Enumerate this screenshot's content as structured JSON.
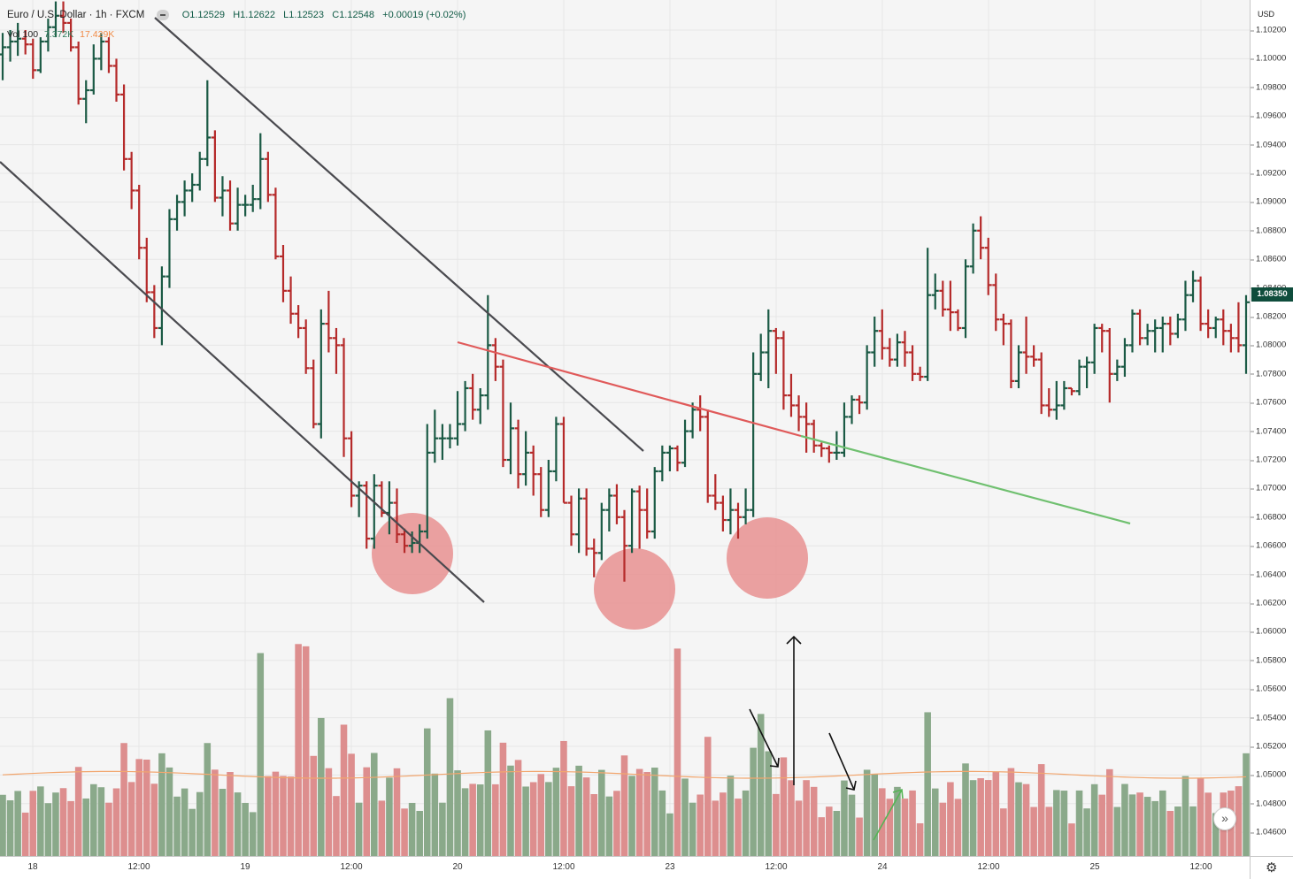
{
  "legend": {
    "symbol": "Euro / U.S. Dollar · 1h · FXCM",
    "open": "O1.12529",
    "high": "H1.12622",
    "low": "L1.12523",
    "close": "C1.12548",
    "change": "+0.00019 (+0.02%)"
  },
  "volume_legend": {
    "label": "Vol 100",
    "value1": "7.372K",
    "value2": "17.429K"
  },
  "price_scale": {
    "currency": "USD",
    "last_price": "1.08350",
    "ticks": [
      "1.10200",
      "1.10000",
      "1.09800",
      "1.09600",
      "1.09400",
      "1.09200",
      "1.09000",
      "1.08800",
      "1.08600",
      "1.08400",
      "1.08200",
      "1.08000",
      "1.07800",
      "1.07600",
      "1.07400",
      "1.07200",
      "1.07000",
      "1.06800",
      "1.06600",
      "1.06400",
      "1.06200",
      "1.06000",
      "1.05800",
      "1.05600",
      "1.05400",
      "1.05200",
      "1.05000",
      "1.04800",
      "1.04600"
    ]
  },
  "time_scale": {
    "ticks": [
      "18",
      "12:00",
      "19",
      "12:00",
      "20",
      "12:00",
      "23",
      "12:00",
      "24",
      "12:00",
      "25",
      "12:00"
    ]
  },
  "colors": {
    "up": "#1b5a45",
    "down": "#b52a2a",
    "volume_up": "#8aa98a",
    "volume_down": "#dd8e8e",
    "volume_ma": "#f2a66e",
    "channel": "#4a4a4f",
    "neckline_red": "#e05a5a",
    "neckline_green": "#70c070",
    "circle": "#e89090"
  },
  "chart_data": {
    "type": "ohlc",
    "candles": [
      {
        "o": 1.1003,
        "h": 1.1018,
        "l": 1.0985,
        "c": 1.1008
      },
      {
        "o": 1.1008,
        "h": 1.102,
        "l": 1.0998,
        "c": 1.1012
      },
      {
        "o": 1.1012,
        "h": 1.1025,
        "l": 1.1002,
        "c": 1.1014
      },
      {
        "o": 1.1014,
        "h": 1.102,
        "l": 1.1003,
        "c": 1.101
      },
      {
        "o": 1.101,
        "h": 1.1014,
        "l": 1.0986,
        "c": 1.0992
      },
      {
        "o": 1.0992,
        "h": 1.1015,
        "l": 1.099,
        "c": 1.1012
      },
      {
        "o": 1.1012,
        "h": 1.1028,
        "l": 1.1005,
        "c": 1.1022
      },
      {
        "o": 1.1022,
        "h": 1.104,
        "l": 1.1015,
        "c": 1.103
      },
      {
        "o": 1.103,
        "h": 1.104,
        "l": 1.1018,
        "c": 1.1025
      },
      {
        "o": 1.1025,
        "h": 1.1028,
        "l": 1.1005,
        "c": 1.1008
      },
      {
        "o": 1.1008,
        "h": 1.1012,
        "l": 1.0968,
        "c": 1.0972
      },
      {
        "o": 1.0972,
        "h": 1.0985,
        "l": 1.0955,
        "c": 1.0978
      },
      {
        "o": 1.0978,
        "h": 1.101,
        "l": 1.0975,
        "c": 1.1
      },
      {
        "o": 1.1,
        "h": 1.1018,
        "l": 1.0992,
        "c": 1.1012
      },
      {
        "o": 1.1012,
        "h": 1.1015,
        "l": 1.099,
        "c": 1.0995
      },
      {
        "o": 1.0995,
        "h": 1.1,
        "l": 1.097,
        "c": 1.0975
      },
      {
        "o": 1.0975,
        "h": 1.0982,
        "l": 1.0922,
        "c": 1.093
      },
      {
        "o": 1.093,
        "h": 1.0935,
        "l": 1.0895,
        "c": 1.0908
      },
      {
        "o": 1.0908,
        "h": 1.0912,
        "l": 1.086,
        "c": 1.0868
      },
      {
        "o": 1.0868,
        "h": 1.0875,
        "l": 1.083,
        "c": 1.0837
      },
      {
        "o": 1.0837,
        "h": 1.0842,
        "l": 1.0805,
        "c": 1.0812
      },
      {
        "o": 1.0812,
        "h": 1.0855,
        "l": 1.08,
        "c": 1.0848
      },
      {
        "o": 1.0848,
        "h": 1.0895,
        "l": 1.084,
        "c": 1.0888
      },
      {
        "o": 1.0888,
        "h": 1.0905,
        "l": 1.088,
        "c": 1.09
      },
      {
        "o": 1.09,
        "h": 1.0915,
        "l": 1.089,
        "c": 1.0908
      },
      {
        "o": 1.0908,
        "h": 1.092,
        "l": 1.09,
        "c": 1.0912
      },
      {
        "o": 1.0912,
        "h": 1.0935,
        "l": 1.0908,
        "c": 1.093
      },
      {
        "o": 1.093,
        "h": 1.0985,
        "l": 1.0925,
        "c": 1.0945
      },
      {
        "o": 1.0945,
        "h": 1.095,
        "l": 1.09,
        "c": 1.0903
      },
      {
        "o": 1.0903,
        "h": 1.0918,
        "l": 1.089,
        "c": 1.0908
      },
      {
        "o": 1.0908,
        "h": 1.0915,
        "l": 1.088,
        "c": 1.0885
      },
      {
        "o": 1.0885,
        "h": 1.091,
        "l": 1.088,
        "c": 1.0898
      },
      {
        "o": 1.0898,
        "h": 1.0905,
        "l": 1.089,
        "c": 1.0898
      },
      {
        "o": 1.0898,
        "h": 1.0912,
        "l": 1.0893,
        "c": 1.0902
      },
      {
        "o": 1.0902,
        "h": 1.0948,
        "l": 1.0895,
        "c": 1.093
      },
      {
        "o": 1.093,
        "h": 1.0935,
        "l": 1.09,
        "c": 1.0905
      },
      {
        "o": 1.0905,
        "h": 1.091,
        "l": 1.086,
        "c": 1.0862
      },
      {
        "o": 1.0862,
        "h": 1.087,
        "l": 1.083,
        "c": 1.0838
      },
      {
        "o": 1.0838,
        "h": 1.0848,
        "l": 1.0815,
        "c": 1.0822
      },
      {
        "o": 1.0822,
        "h": 1.0828,
        "l": 1.0805,
        "c": 1.0812
      },
      {
        "o": 1.0812,
        "h": 1.0818,
        "l": 1.078,
        "c": 1.0784
      },
      {
        "o": 1.0784,
        "h": 1.079,
        "l": 1.0742,
        "c": 1.0745
      },
      {
        "o": 1.0745,
        "h": 1.0825,
        "l": 1.0735,
        "c": 1.0815
      },
      {
        "o": 1.0815,
        "h": 1.0838,
        "l": 1.0795,
        "c": 1.0805
      },
      {
        "o": 1.0805,
        "h": 1.0812,
        "l": 1.078,
        "c": 1.08
      },
      {
        "o": 1.08,
        "h": 1.0805,
        "l": 1.0722,
        "c": 1.0735
      },
      {
        "o": 1.0735,
        "h": 1.074,
        "l": 1.0687,
        "c": 1.0695
      },
      {
        "o": 1.0695,
        "h": 1.0705,
        "l": 1.068,
        "c": 1.0702
      },
      {
        "o": 1.0702,
        "h": 1.0705,
        "l": 1.0658,
        "c": 1.0665
      },
      {
        "o": 1.0665,
        "h": 1.071,
        "l": 1.0658,
        "c": 1.0702
      },
      {
        "o": 1.0702,
        "h": 1.0705,
        "l": 1.068,
        "c": 1.0683
      },
      {
        "o": 1.0683,
        "h": 1.0705,
        "l": 1.0668,
        "c": 1.069
      },
      {
        "o": 1.069,
        "h": 1.07,
        "l": 1.0662,
        "c": 1.0668
      },
      {
        "o": 1.0668,
        "h": 1.0672,
        "l": 1.0655,
        "c": 1.066
      },
      {
        "o": 1.066,
        "h": 1.067,
        "l": 1.0655,
        "c": 1.0662
      },
      {
        "o": 1.0662,
        "h": 1.0675,
        "l": 1.0655,
        "c": 1.067
      },
      {
        "o": 1.067,
        "h": 1.0745,
        "l": 1.0665,
        "c": 1.0725
      },
      {
        "o": 1.0725,
        "h": 1.0755,
        "l": 1.0718,
        "c": 1.0735
      },
      {
        "o": 1.0735,
        "h": 1.0745,
        "l": 1.072,
        "c": 1.0735
      },
      {
        "o": 1.0735,
        "h": 1.0745,
        "l": 1.0728,
        "c": 1.0735
      },
      {
        "o": 1.0735,
        "h": 1.0768,
        "l": 1.073,
        "c": 1.0745
      },
      {
        "o": 1.0745,
        "h": 1.0775,
        "l": 1.074,
        "c": 1.077
      },
      {
        "o": 1.077,
        "h": 1.078,
        "l": 1.0748,
        "c": 1.0755
      },
      {
        "o": 1.0755,
        "h": 1.077,
        "l": 1.0745,
        "c": 1.0765
      },
      {
        "o": 1.0765,
        "h": 1.0835,
        "l": 1.0755,
        "c": 1.08
      },
      {
        "o": 1.08,
        "h": 1.0805,
        "l": 1.0775,
        "c": 1.0785
      },
      {
        "o": 1.0785,
        "h": 1.079,
        "l": 1.0715,
        "c": 1.072
      },
      {
        "o": 1.072,
        "h": 1.076,
        "l": 1.071,
        "c": 1.0742
      },
      {
        "o": 1.0742,
        "h": 1.0748,
        "l": 1.07,
        "c": 1.071
      },
      {
        "o": 1.071,
        "h": 1.074,
        "l": 1.0702,
        "c": 1.0725
      },
      {
        "o": 1.0725,
        "h": 1.073,
        "l": 1.0695,
        "c": 1.071
      },
      {
        "o": 1.071,
        "h": 1.0715,
        "l": 1.068,
        "c": 1.0685
      },
      {
        "o": 1.0685,
        "h": 1.072,
        "l": 1.068,
        "c": 1.0712
      },
      {
        "o": 1.0712,
        "h": 1.075,
        "l": 1.0705,
        "c": 1.0745
      },
      {
        "o": 1.0745,
        "h": 1.075,
        "l": 1.069,
        "c": 1.069
      },
      {
        "o": 1.069,
        "h": 1.0695,
        "l": 1.066,
        "c": 1.0668
      },
      {
        "o": 1.0668,
        "h": 1.07,
        "l": 1.0655,
        "c": 1.0693
      },
      {
        "o": 1.0693,
        "h": 1.07,
        "l": 1.0653,
        "c": 1.0658
      },
      {
        "o": 1.0658,
        "h": 1.0665,
        "l": 1.0638,
        "c": 1.0655
      },
      {
        "o": 1.0655,
        "h": 1.069,
        "l": 1.065,
        "c": 1.0685
      },
      {
        "o": 1.0685,
        "h": 1.07,
        "l": 1.067,
        "c": 1.0695
      },
      {
        "o": 1.0695,
        "h": 1.0703,
        "l": 1.0675,
        "c": 1.068
      },
      {
        "o": 1.068,
        "h": 1.0685,
        "l": 1.0635,
        "c": 1.066
      },
      {
        "o": 1.066,
        "h": 1.07,
        "l": 1.0655,
        "c": 1.0698
      },
      {
        "o": 1.0698,
        "h": 1.0702,
        "l": 1.0658,
        "c": 1.0685
      },
      {
        "o": 1.0685,
        "h": 1.07,
        "l": 1.0665,
        "c": 1.067
      },
      {
        "o": 1.067,
        "h": 1.0715,
        "l": 1.0665,
        "c": 1.0712
      },
      {
        "o": 1.0712,
        "h": 1.073,
        "l": 1.0705,
        "c": 1.0725
      },
      {
        "o": 1.0725,
        "h": 1.073,
        "l": 1.0712,
        "c": 1.0728
      },
      {
        "o": 1.0728,
        "h": 1.073,
        "l": 1.0712,
        "c": 1.0718
      },
      {
        "o": 1.0718,
        "h": 1.0748,
        "l": 1.0715,
        "c": 1.074
      },
      {
        "o": 1.074,
        "h": 1.076,
        "l": 1.0735,
        "c": 1.0755
      },
      {
        "o": 1.0755,
        "h": 1.0765,
        "l": 1.074,
        "c": 1.075
      },
      {
        "o": 1.075,
        "h": 1.0755,
        "l": 1.069,
        "c": 1.0695
      },
      {
        "o": 1.0695,
        "h": 1.071,
        "l": 1.0685,
        "c": 1.069
      },
      {
        "o": 1.069,
        "h": 1.0695,
        "l": 1.067,
        "c": 1.0678
      },
      {
        "o": 1.0678,
        "h": 1.07,
        "l": 1.0668,
        "c": 1.0685
      },
      {
        "o": 1.0685,
        "h": 1.069,
        "l": 1.0665,
        "c": 1.068
      },
      {
        "o": 1.068,
        "h": 1.07,
        "l": 1.0675,
        "c": 1.0685
      },
      {
        "o": 1.0685,
        "h": 1.0795,
        "l": 1.068,
        "c": 1.078
      },
      {
        "o": 1.078,
        "h": 1.0808,
        "l": 1.0775,
        "c": 1.0795
      },
      {
        "o": 1.0795,
        "h": 1.0825,
        "l": 1.077,
        "c": 1.081
      },
      {
        "o": 1.081,
        "h": 1.0812,
        "l": 1.078,
        "c": 1.0805
      },
      {
        "o": 1.0805,
        "h": 1.081,
        "l": 1.0755,
        "c": 1.0765
      },
      {
        "o": 1.0765,
        "h": 1.078,
        "l": 1.075,
        "c": 1.0758
      },
      {
        "o": 1.0758,
        "h": 1.0765,
        "l": 1.074,
        "c": 1.075
      },
      {
        "o": 1.075,
        "h": 1.076,
        "l": 1.0725,
        "c": 1.0745
      },
      {
        "o": 1.0745,
        "h": 1.0748,
        "l": 1.0725,
        "c": 1.073
      },
      {
        "o": 1.073,
        "h": 1.0732,
        "l": 1.0722,
        "c": 1.0728
      },
      {
        "o": 1.0728,
        "h": 1.073,
        "l": 1.0718,
        "c": 1.0725
      },
      {
        "o": 1.0725,
        "h": 1.074,
        "l": 1.072,
        "c": 1.0725
      },
      {
        "o": 1.0725,
        "h": 1.076,
        "l": 1.0722,
        "c": 1.075
      },
      {
        "o": 1.075,
        "h": 1.0765,
        "l": 1.0745,
        "c": 1.0762
      },
      {
        "o": 1.0762,
        "h": 1.0765,
        "l": 1.0752,
        "c": 1.076
      },
      {
        "o": 1.076,
        "h": 1.08,
        "l": 1.0755,
        "c": 1.0795
      },
      {
        "o": 1.0795,
        "h": 1.082,
        "l": 1.0785,
        "c": 1.081
      },
      {
        "o": 1.081,
        "h": 1.0825,
        "l": 1.079,
        "c": 1.0798
      },
      {
        "o": 1.0798,
        "h": 1.0805,
        "l": 1.0785,
        "c": 1.079
      },
      {
        "o": 1.079,
        "h": 1.0808,
        "l": 1.0785,
        "c": 1.0802
      },
      {
        "o": 1.0802,
        "h": 1.081,
        "l": 1.0785,
        "c": 1.0795
      },
      {
        "o": 1.0795,
        "h": 1.08,
        "l": 1.0775,
        "c": 1.078
      },
      {
        "o": 1.078,
        "h": 1.0785,
        "l": 1.0775,
        "c": 1.0778
      },
      {
        "o": 1.0778,
        "h": 1.0868,
        "l": 1.0775,
        "c": 1.0835
      },
      {
        "o": 1.0835,
        "h": 1.085,
        "l": 1.0825,
        "c": 1.0838
      },
      {
        "o": 1.0838,
        "h": 1.0845,
        "l": 1.082,
        "c": 1.0825
      },
      {
        "o": 1.0825,
        "h": 1.0845,
        "l": 1.081,
        "c": 1.0823
      },
      {
        "o": 1.0823,
        "h": 1.0825,
        "l": 1.081,
        "c": 1.0812
      },
      {
        "o": 1.0812,
        "h": 1.086,
        "l": 1.0805,
        "c": 1.0855
      },
      {
        "o": 1.0855,
        "h": 1.0885,
        "l": 1.085,
        "c": 1.088
      },
      {
        "o": 1.088,
        "h": 1.089,
        "l": 1.086,
        "c": 1.0868
      },
      {
        "o": 1.0868,
        "h": 1.0875,
        "l": 1.0835,
        "c": 1.0842
      },
      {
        "o": 1.0842,
        "h": 1.085,
        "l": 1.081,
        "c": 1.0818
      },
      {
        "o": 1.0818,
        "h": 1.0822,
        "l": 1.08,
        "c": 1.0815
      },
      {
        "o": 1.0815,
        "h": 1.0818,
        "l": 1.077,
        "c": 1.0775
      },
      {
        "o": 1.0775,
        "h": 1.08,
        "l": 1.077,
        "c": 1.0795
      },
      {
        "o": 1.0795,
        "h": 1.082,
        "l": 1.078,
        "c": 1.0792
      },
      {
        "o": 1.0792,
        "h": 1.08,
        "l": 1.0785,
        "c": 1.079
      },
      {
        "o": 1.079,
        "h": 1.0795,
        "l": 1.0752,
        "c": 1.0758
      },
      {
        "o": 1.0758,
        "h": 1.077,
        "l": 1.075,
        "c": 1.0755
      },
      {
        "o": 1.0755,
        "h": 1.0775,
        "l": 1.0748,
        "c": 1.0758
      },
      {
        "o": 1.0758,
        "h": 1.0775,
        "l": 1.0755,
        "c": 1.077
      },
      {
        "o": 1.077,
        "h": 1.077,
        "l": 1.0765,
        "c": 1.0768
      },
      {
        "o": 1.0768,
        "h": 1.079,
        "l": 1.0765,
        "c": 1.0785
      },
      {
        "o": 1.0785,
        "h": 1.0792,
        "l": 1.077,
        "c": 1.0788
      },
      {
        "o": 1.0788,
        "h": 1.0815,
        "l": 1.078,
        "c": 1.0812
      },
      {
        "o": 1.0812,
        "h": 1.0815,
        "l": 1.0795,
        "c": 1.081
      },
      {
        "o": 1.081,
        "h": 1.0812,
        "l": 1.076,
        "c": 1.078
      },
      {
        "o": 1.078,
        "h": 1.079,
        "l": 1.0775,
        "c": 1.0785
      },
      {
        "o": 1.0785,
        "h": 1.0805,
        "l": 1.0778,
        "c": 1.08
      },
      {
        "o": 1.08,
        "h": 1.0825,
        "l": 1.0795,
        "c": 1.0822
      },
      {
        "o": 1.0822,
        "h": 1.0825,
        "l": 1.08,
        "c": 1.0805
      },
      {
        "o": 1.0805,
        "h": 1.0815,
        "l": 1.08,
        "c": 1.081
      },
      {
        "o": 1.081,
        "h": 1.0818,
        "l": 1.0795,
        "c": 1.0812
      },
      {
        "o": 1.0812,
        "h": 1.082,
        "l": 1.0795,
        "c": 1.0815
      },
      {
        "o": 1.0815,
        "h": 1.082,
        "l": 1.08,
        "c": 1.0808
      },
      {
        "o": 1.0808,
        "h": 1.0822,
        "l": 1.0805,
        "c": 1.0818
      },
      {
        "o": 1.0818,
        "h": 1.0845,
        "l": 1.081,
        "c": 1.0835
      },
      {
        "o": 1.0835,
        "h": 1.0852,
        "l": 1.083,
        "c": 1.0845
      },
      {
        "o": 1.0845,
        "h": 1.0848,
        "l": 1.081,
        "c": 1.0815
      },
      {
        "o": 1.0815,
        "h": 1.0825,
        "l": 1.0805,
        "c": 1.0812
      },
      {
        "o": 1.0812,
        "h": 1.082,
        "l": 1.0805,
        "c": 1.0818
      },
      {
        "o": 1.0818,
        "h": 1.0825,
        "l": 1.08,
        "c": 1.081
      },
      {
        "o": 1.081,
        "h": 1.0815,
        "l": 1.0795,
        "c": 1.0805
      },
      {
        "o": 1.0805,
        "h": 1.083,
        "l": 1.0795,
        "c": 1.08
      },
      {
        "o": 1.08,
        "h": 1.0835,
        "l": 1.078,
        "c": 1.083
      }
    ],
    "volume_ma": 4.9
  }
}
